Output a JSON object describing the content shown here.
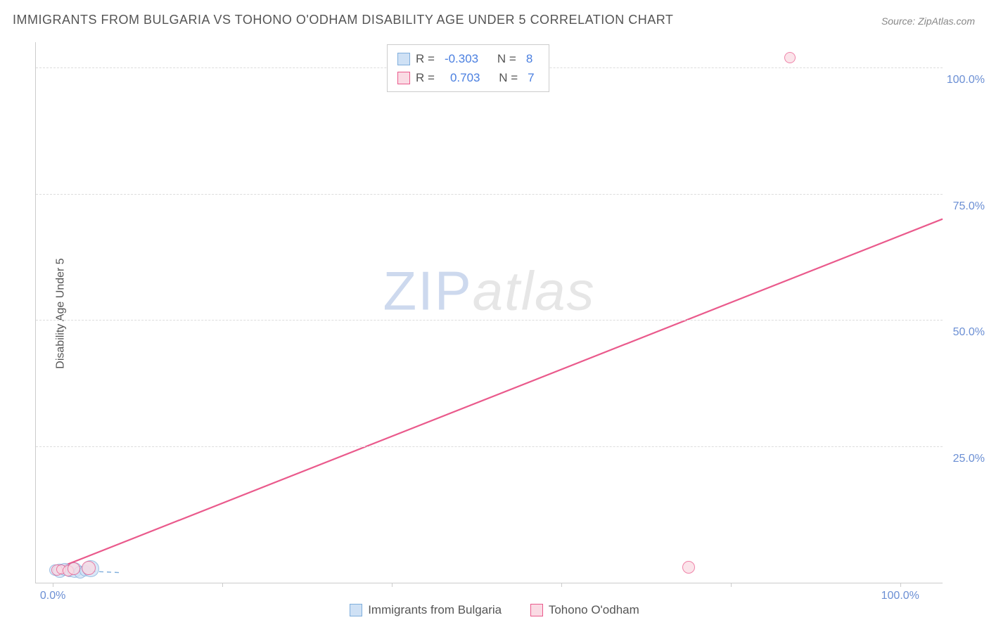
{
  "title": "IMMIGRANTS FROM BULGARIA VS TOHONO O'ODHAM DISABILITY AGE UNDER 5 CORRELATION CHART",
  "source_label": "Source: ",
  "source_value": "ZipAtlas.com",
  "y_axis_label": "Disability Age Under 5",
  "watermark_a": "ZIP",
  "watermark_b": "atlas",
  "chart": {
    "type": "scatter-correlation",
    "background_color": "#ffffff",
    "grid_color": "#dddddd",
    "axis_color": "#cccccc",
    "xlim": [
      -2,
      105
    ],
    "ylim": [
      -2,
      105
    ],
    "x_ticks": [
      0,
      20,
      40,
      60,
      80,
      100
    ],
    "y_ticks": [
      25,
      50,
      75,
      100
    ],
    "x_tick_labels": {
      "0": "0.0%",
      "100": "100.0%"
    },
    "y_tick_labels": {
      "25": "25.0%",
      "50": "50.0%",
      "75": "75.0%",
      "100": "100.0%"
    },
    "label_color": "#6b8fd4",
    "label_fontsize": 16,
    "title_color": "#555555",
    "title_fontsize": 18,
    "series": [
      {
        "name": "Immigrants from Bulgaria",
        "color_fill": "#cfe1f5",
        "color_stroke": "#7faedc",
        "r_label": "R =",
        "r_value": "-0.303",
        "n_label": "N =",
        "n_value": "8",
        "trend": {
          "x1": 0,
          "y1": 0.6,
          "x2": 8,
          "y2": 0.0,
          "dash": "6,5",
          "width": 1.4
        },
        "points": [
          {
            "x": 0.2,
            "y": 0.5,
            "r": 8
          },
          {
            "x": 0.8,
            "y": 0.3,
            "r": 10
          },
          {
            "x": 1.4,
            "y": 0.6,
            "r": 9
          },
          {
            "x": 2.0,
            "y": 0.2,
            "r": 8
          },
          {
            "x": 2.6,
            "y": 0.5,
            "r": 11
          },
          {
            "x": 3.2,
            "y": 0.1,
            "r": 9
          },
          {
            "x": 3.8,
            "y": 0.4,
            "r": 8
          },
          {
            "x": 4.5,
            "y": 0.8,
            "r": 12
          }
        ]
      },
      {
        "name": "Tohono O'odham",
        "color_fill": "#fadbe4",
        "color_stroke": "#ea5a8c",
        "r_label": "R =",
        "r_value": "0.703",
        "n_label": "N =",
        "n_value": "7",
        "trend": {
          "x1": 0,
          "y1": 0.5,
          "x2": 105,
          "y2": 70,
          "dash": "none",
          "width": 2.2
        },
        "points": [
          {
            "x": 0.5,
            "y": 0.5,
            "r": 8
          },
          {
            "x": 1.0,
            "y": 0.6,
            "r": 7
          },
          {
            "x": 1.8,
            "y": 0.3,
            "r": 8
          },
          {
            "x": 2.5,
            "y": 0.8,
            "r": 9
          },
          {
            "x": 4.2,
            "y": 0.9,
            "r": 10
          },
          {
            "x": 75.0,
            "y": 1.0,
            "r": 9
          },
          {
            "x": 87.0,
            "y": 102.0,
            "r": 8
          }
        ]
      }
    ]
  }
}
